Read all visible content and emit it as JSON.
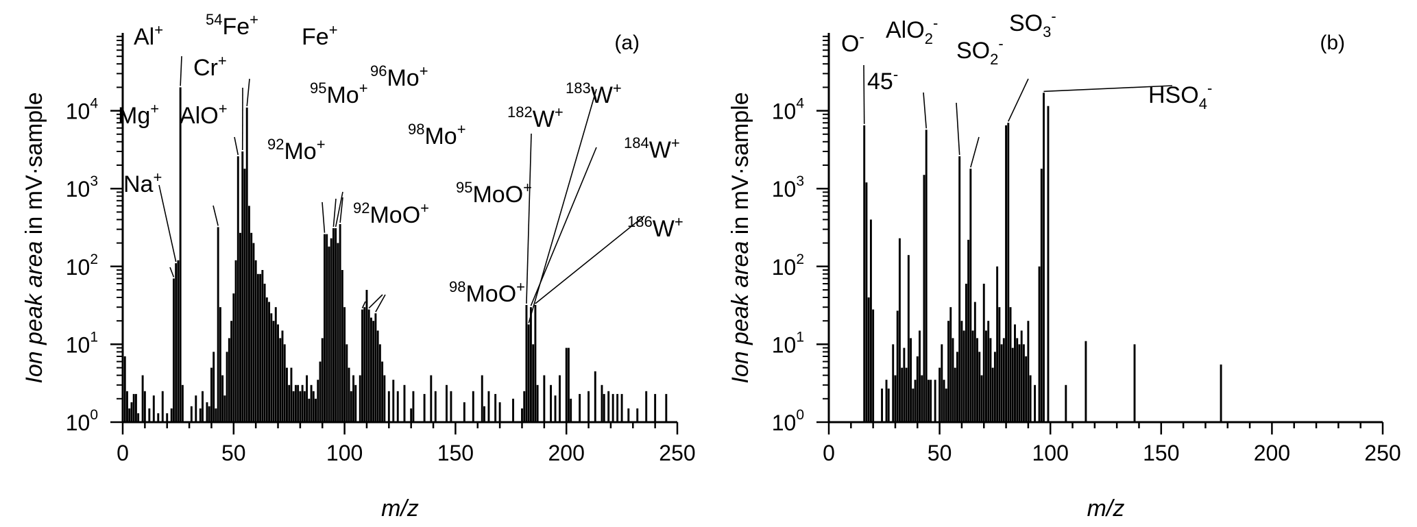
{
  "chart_data": [
    {
      "type": "bar",
      "panel_label": "(a)",
      "xlabel": "m/z",
      "ylabel": "Ion peak area in mV·sample",
      "ylabel_italic": "Ion peak area",
      "ylabel_rest": " in mV·sample",
      "xlim": [
        0,
        250
      ],
      "ylim": [
        1,
        100000
      ],
      "y_scale": "log",
      "x_ticks": [
        0,
        50,
        100,
        150,
        200,
        250
      ],
      "y_tick_mantissa": "10",
      "y_tick_exponents": [
        "0",
        "1",
        "2",
        "3",
        "4"
      ],
      "bars": [
        [
          1,
          7
        ],
        [
          2,
          2.5
        ],
        [
          3,
          1.5
        ],
        [
          4,
          1.8
        ],
        [
          5,
          2.3
        ],
        [
          6,
          2.3
        ],
        [
          7,
          1.3
        ],
        [
          9,
          4
        ],
        [
          10,
          2.5
        ],
        [
          12,
          1.5
        ],
        [
          14,
          2.2
        ],
        [
          16,
          1.3
        ],
        [
          18,
          2.5
        ],
        [
          20,
          1.3
        ],
        [
          22,
          1.5
        ],
        [
          23,
          70
        ],
        [
          24,
          110
        ],
        [
          25,
          120
        ],
        [
          26,
          20000
        ],
        [
          27,
          3
        ],
        [
          31,
          1.6
        ],
        [
          33,
          2.2
        ],
        [
          35,
          1.5
        ],
        [
          36,
          2.5
        ],
        [
          38,
          1.8
        ],
        [
          39,
          1.6
        ],
        [
          40,
          5
        ],
        [
          41,
          8
        ],
        [
          42,
          1.5
        ],
        [
          43,
          320
        ],
        [
          44,
          30
        ],
        [
          45,
          4
        ],
        [
          46,
          2.2
        ],
        [
          47,
          8
        ],
        [
          48,
          12
        ],
        [
          49,
          20
        ],
        [
          50,
          45
        ],
        [
          51,
          120
        ],
        [
          52,
          2600
        ],
        [
          53,
          270
        ],
        [
          54,
          3000
        ],
        [
          55,
          1800
        ],
        [
          56,
          11000
        ],
        [
          57,
          600
        ],
        [
          58,
          270
        ],
        [
          59,
          200
        ],
        [
          60,
          120
        ],
        [
          61,
          80
        ],
        [
          62,
          80
        ],
        [
          63,
          90
        ],
        [
          64,
          60
        ],
        [
          65,
          40
        ],
        [
          66,
          35
        ],
        [
          67,
          25
        ],
        [
          68,
          20
        ],
        [
          69,
          30
        ],
        [
          70,
          18
        ],
        [
          71,
          12
        ],
        [
          72,
          15
        ],
        [
          73,
          10
        ],
        [
          74,
          5
        ],
        [
          75,
          3
        ],
        [
          76,
          5
        ],
        [
          77,
          2.5
        ],
        [
          78,
          3
        ],
        [
          79,
          3
        ],
        [
          80,
          2.5
        ],
        [
          81,
          3
        ],
        [
          82,
          2.5
        ],
        [
          83,
          4
        ],
        [
          84,
          2
        ],
        [
          85,
          3
        ],
        [
          86,
          2.5
        ],
        [
          87,
          2
        ],
        [
          88,
          3.5
        ],
        [
          89,
          6
        ],
        [
          90,
          12
        ],
        [
          91,
          260
        ],
        [
          92,
          260
        ],
        [
          93,
          180
        ],
        [
          94,
          230
        ],
        [
          95,
          310
        ],
        [
          96,
          310
        ],
        [
          97,
          200
        ],
        [
          98,
          350
        ],
        [
          99,
          90
        ],
        [
          100,
          30
        ],
        [
          101,
          10
        ],
        [
          102,
          5
        ],
        [
          103,
          2.5
        ],
        [
          104,
          4
        ],
        [
          105,
          3
        ],
        [
          107,
          4
        ],
        [
          108,
          28
        ],
        [
          109,
          30
        ],
        [
          110,
          50
        ],
        [
          111,
          28
        ],
        [
          112,
          22
        ],
        [
          113,
          20
        ],
        [
          114,
          25
        ],
        [
          115,
          15
        ],
        [
          116,
          10
        ],
        [
          117,
          6
        ],
        [
          118,
          4
        ],
        [
          120,
          2.5
        ],
        [
          122,
          3.5
        ],
        [
          124,
          2.5
        ],
        [
          127,
          3
        ],
        [
          130,
          1.5
        ],
        [
          131,
          2.5
        ],
        [
          136,
          2.3
        ],
        [
          139,
          4
        ],
        [
          141,
          2.5
        ],
        [
          146,
          3
        ],
        [
          148,
          2.5
        ],
        [
          154,
          1.8
        ],
        [
          158,
          2.5
        ],
        [
          162,
          4
        ],
        [
          163,
          1.6
        ],
        [
          165,
          2.5
        ],
        [
          168,
          2.3
        ],
        [
          170,
          1.8
        ],
        [
          176,
          2
        ],
        [
          180,
          1.5
        ],
        [
          181,
          2.5
        ],
        [
          182,
          32
        ],
        [
          183,
          18
        ],
        [
          184,
          30
        ],
        [
          185,
          10
        ],
        [
          186,
          32
        ],
        [
          187,
          3
        ],
        [
          190,
          4
        ],
        [
          193,
          3
        ],
        [
          195,
          2.2
        ],
        [
          197,
          4
        ],
        [
          200,
          9
        ],
        [
          201,
          9
        ],
        [
          202,
          2
        ],
        [
          206,
          2.3
        ],
        [
          210,
          2.5
        ],
        [
          213,
          4.5
        ],
        [
          216,
          3
        ],
        [
          217,
          2.3
        ],
        [
          219,
          2.5
        ],
        [
          221,
          2.3
        ],
        [
          223,
          2.3
        ],
        [
          225,
          2.3
        ],
        [
          228,
          1.5
        ],
        [
          232,
          1.5
        ],
        [
          236,
          2.5
        ],
        [
          240,
          2.3
        ],
        [
          245,
          2.3
        ]
      ],
      "annotations": [
        {
          "sup": "",
          "base": "Al",
          "tail": "+",
          "target": [
            26,
            20000
          ]
        },
        {
          "sup": "54",
          "base": "Fe",
          "tail": "+",
          "target": [
            54,
            3000
          ]
        },
        {
          "sup": "",
          "base": "Fe",
          "tail": "+",
          "target": [
            56,
            11000
          ]
        },
        {
          "sup": "",
          "base": "Cr",
          "tail": "+",
          "target": [
            52,
            2600
          ]
        },
        {
          "sup": "",
          "base": "AlO",
          "tail": "+",
          "target": [
            43,
            320
          ]
        },
        {
          "sup": "",
          "base": "Mg",
          "tail": "+",
          "target": [
            24,
            110
          ]
        },
        {
          "sup": "",
          "base": "Na",
          "tail": "+",
          "target": [
            23,
            70
          ]
        },
        {
          "sup": "96",
          "base": "Mo",
          "tail": "+",
          "target": [
            96,
            310
          ]
        },
        {
          "sup": "95",
          "base": "Mo",
          "tail": "+",
          "target": [
            95,
            310
          ]
        },
        {
          "sup": "92",
          "base": "Mo",
          "tail": "+",
          "target": [
            91,
            260
          ]
        },
        {
          "sup": "98",
          "base": "Mo",
          "tail": "+",
          "target": [
            98,
            350
          ]
        },
        {
          "sup": "95",
          "base": "MoO",
          "tail": "+",
          "target": [
            111,
            28
          ]
        },
        {
          "sup": "92",
          "base": "MoO",
          "tail": "+",
          "target": [
            108,
            28
          ]
        },
        {
          "sup": "98",
          "base": "MoO",
          "tail": "+",
          "target": [
            114,
            25
          ]
        },
        {
          "sup": "182",
          "base": "W",
          "tail": "+",
          "target": [
            182,
            32
          ]
        },
        {
          "sup": "183",
          "base": "W",
          "tail": "+",
          "target": [
            183,
            18
          ]
        },
        {
          "sup": "184",
          "base": "W",
          "tail": "+",
          "target": [
            184,
            30
          ]
        },
        {
          "sup": "186",
          "base": "W",
          "tail": "+",
          "target": [
            186,
            32
          ]
        }
      ]
    },
    {
      "type": "bar",
      "panel_label": "(b)",
      "xlabel": "m/z",
      "ylabel": "Ion peak area in mV·sample",
      "ylabel_italic": "Ion peak area",
      "ylabel_rest": " in mV·sample",
      "xlim": [
        0,
        250
      ],
      "ylim": [
        1,
        100000
      ],
      "y_scale": "log",
      "x_ticks": [
        0,
        50,
        100,
        150,
        200,
        250
      ],
      "y_tick_mantissa": "10",
      "y_tick_exponents": [
        "0",
        "1",
        "2",
        "3",
        "4"
      ],
      "bars": [
        [
          16,
          6500
        ],
        [
          17,
          1200
        ],
        [
          18,
          40
        ],
        [
          19,
          400
        ],
        [
          20,
          28
        ],
        [
          24,
          2.7
        ],
        [
          26,
          3.5
        ],
        [
          27,
          2.7
        ],
        [
          29,
          10
        ],
        [
          30,
          4
        ],
        [
          31,
          27
        ],
        [
          32,
          230
        ],
        [
          33,
          5
        ],
        [
          34,
          9
        ],
        [
          35,
          5
        ],
        [
          36,
          140
        ],
        [
          37,
          12
        ],
        [
          38,
          2.7
        ],
        [
          39,
          3.5
        ],
        [
          40,
          7
        ],
        [
          41,
          15
        ],
        [
          42,
          4
        ],
        [
          43,
          1500
        ],
        [
          44,
          5700
        ],
        [
          45,
          3.5
        ],
        [
          46,
          3.5
        ],
        [
          48,
          3.5
        ],
        [
          50,
          5
        ],
        [
          51,
          10
        ],
        [
          52,
          3.5
        ],
        [
          53,
          2.7
        ],
        [
          54,
          20
        ],
        [
          55,
          30
        ],
        [
          56,
          12
        ],
        [
          57,
          5
        ],
        [
          58,
          8
        ],
        [
          59,
          2600
        ],
        [
          60,
          20
        ],
        [
          61,
          15
        ],
        [
          62,
          60
        ],
        [
          63,
          220
        ],
        [
          64,
          1800
        ],
        [
          65,
          15
        ],
        [
          66,
          35
        ],
        [
          67,
          12
        ],
        [
          68,
          8
        ],
        [
          69,
          4
        ],
        [
          70,
          60
        ],
        [
          71,
          15
        ],
        [
          72,
          20
        ],
        [
          73,
          12
        ],
        [
          74,
          5
        ],
        [
          75,
          8
        ],
        [
          76,
          100
        ],
        [
          77,
          30
        ],
        [
          78,
          10
        ],
        [
          79,
          12
        ],
        [
          80,
          6500
        ],
        [
          81,
          7000
        ],
        [
          82,
          30
        ],
        [
          83,
          9
        ],
        [
          84,
          18
        ],
        [
          85,
          12
        ],
        [
          86,
          10
        ],
        [
          87,
          15
        ],
        [
          88,
          10
        ],
        [
          89,
          7
        ],
        [
          90,
          20
        ],
        [
          91,
          4
        ],
        [
          93,
          3
        ],
        [
          95,
          100
        ],
        [
          96,
          1800
        ],
        [
          97,
          17000
        ],
        [
          99,
          11500
        ],
        [
          107,
          3
        ],
        [
          116,
          11
        ],
        [
          138,
          10
        ],
        [
          177,
          5.5
        ]
      ],
      "annotations": [
        {
          "sup": "",
          "base": "O",
          "tail": "-",
          "target": [
            16,
            6500
          ]
        },
        {
          "sup": "",
          "base": "45",
          "tail": "-",
          "target": [
            44,
            5700
          ]
        },
        {
          "sup": "",
          "base": "AlO",
          "sub": "2",
          "tail": "-",
          "target": [
            59,
            2600
          ]
        },
        {
          "sup": "",
          "base": "SO",
          "sub": "2",
          "tail": "-",
          "target": [
            64,
            1800
          ]
        },
        {
          "sup": "",
          "base": "SO",
          "sub": "3",
          "tail": "-",
          "target": [
            81,
            7000
          ]
        },
        {
          "sup": "",
          "base": "HSO",
          "sub": "4",
          "tail": "-",
          "target": [
            97,
            17000
          ]
        }
      ]
    }
  ]
}
